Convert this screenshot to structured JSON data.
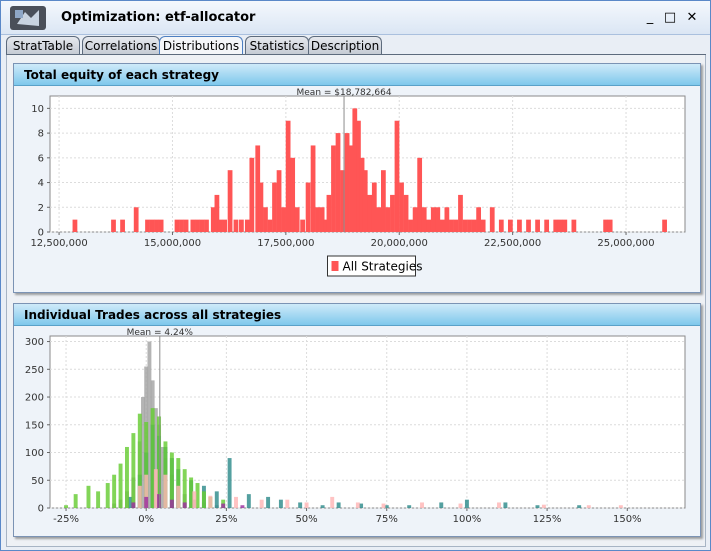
{
  "window": {
    "title": "Optimization: etf-allocator",
    "controls": {
      "minimize": "_",
      "maximize": "□",
      "close": "✕"
    }
  },
  "tabs": [
    {
      "label": "StratTable"
    },
    {
      "label": "Correlations"
    },
    {
      "label": "Distributions",
      "active": true
    },
    {
      "label": "Statistics"
    },
    {
      "label": "Description"
    }
  ],
  "colors": {
    "bar": "#ff5555",
    "panel_header": "#7ec8ec"
  },
  "panels": {
    "equity": {
      "title": "Total equity of each strategy"
    },
    "trades": {
      "title": "Individual Trades across all strategies"
    }
  },
  "chart_data": [
    {
      "type": "bar",
      "title": "",
      "xlabel": "",
      "ylabel": "",
      "annotation": "Mean = $18,782,664",
      "mean": 18782664,
      "xlim": [
        12300000,
        26300000
      ],
      "ylim": [
        0,
        11
      ],
      "x_ticks": [
        12500000,
        15000000,
        17500000,
        20000000,
        22500000,
        25000000
      ],
      "x_tick_labels": [
        "12,500,000",
        "15,000,000",
        "17,500,000",
        "20,000,000",
        "22,500,000",
        "25,000,000"
      ],
      "y_ticks": [
        0,
        2,
        4,
        6,
        8,
        10
      ],
      "y_tick_labels": [
        "0",
        "2",
        "4",
        "6",
        "8",
        "10"
      ],
      "legend": {
        "position": "bottom-center",
        "entries": [
          "All Strategies"
        ]
      },
      "grid": true,
      "series": [
        {
          "name": "All Strategies",
          "color": "#ff5555",
          "points": [
            [
              12850000,
              1
            ],
            [
              13700000,
              1
            ],
            [
              13900000,
              1
            ],
            [
              14200000,
              2
            ],
            [
              14450000,
              1
            ],
            [
              14550000,
              1
            ],
            [
              14650000,
              1
            ],
            [
              14750000,
              1
            ],
            [
              15100000,
              1
            ],
            [
              15200000,
              1
            ],
            [
              15300000,
              1
            ],
            [
              15450000,
              1
            ],
            [
              15550000,
              1
            ],
            [
              15650000,
              1
            ],
            [
              15750000,
              1
            ],
            [
              15900000,
              2
            ],
            [
              15980000,
              3
            ],
            [
              16050000,
              1
            ],
            [
              16150000,
              1
            ],
            [
              16270000,
              5
            ],
            [
              16400000,
              1
            ],
            [
              16520000,
              1
            ],
            [
              16650000,
              1
            ],
            [
              16750000,
              6
            ],
            [
              16880000,
              7
            ],
            [
              16950000,
              4
            ],
            [
              17050000,
              2
            ],
            [
              17150000,
              1
            ],
            [
              17250000,
              4
            ],
            [
              17350000,
              5
            ],
            [
              17450000,
              2
            ],
            [
              17550000,
              9
            ],
            [
              17650000,
              6
            ],
            [
              17750000,
              2
            ],
            [
              17870000,
              1
            ],
            [
              17990000,
              4
            ],
            [
              18100000,
              7
            ],
            [
              18200000,
              2
            ],
            [
              18300000,
              2
            ],
            [
              18380000,
              1
            ],
            [
              18450000,
              3
            ],
            [
              18550000,
              7
            ],
            [
              18650000,
              8
            ],
            [
              18750000,
              5
            ],
            [
              18850000,
              8
            ],
            [
              18950000,
              7
            ],
            [
              19020000,
              10
            ],
            [
              19100000,
              9
            ],
            [
              19180000,
              6
            ],
            [
              19250000,
              5
            ],
            [
              19350000,
              3
            ],
            [
              19450000,
              4
            ],
            [
              19550000,
              2
            ],
            [
              19650000,
              5
            ],
            [
              19750000,
              2
            ],
            [
              19850000,
              3
            ],
            [
              19950000,
              9
            ],
            [
              20050000,
              4
            ],
            [
              20150000,
              3
            ],
            [
              20250000,
              1
            ],
            [
              20350000,
              2
            ],
            [
              20450000,
              6
            ],
            [
              20550000,
              2
            ],
            [
              20650000,
              1
            ],
            [
              20750000,
              2
            ],
            [
              20850000,
              2
            ],
            [
              20950000,
              1
            ],
            [
              21050000,
              2
            ],
            [
              21150000,
              1
            ],
            [
              21250000,
              1
            ],
            [
              21350000,
              3
            ],
            [
              21450000,
              1
            ],
            [
              21550000,
              1
            ],
            [
              21650000,
              1
            ],
            [
              21750000,
              2
            ],
            [
              21850000,
              1
            ],
            [
              22050000,
              2
            ],
            [
              22250000,
              1
            ],
            [
              22450000,
              1
            ],
            [
              22650000,
              1
            ],
            [
              22850000,
              1
            ],
            [
              23050000,
              1
            ],
            [
              23250000,
              1
            ],
            [
              23450000,
              1
            ],
            [
              23550000,
              1
            ],
            [
              23650000,
              1
            ],
            [
              23850000,
              1
            ],
            [
              24550000,
              1
            ],
            [
              24650000,
              1
            ],
            [
              25850000,
              1
            ]
          ]
        }
      ]
    },
    {
      "type": "bar",
      "title": "",
      "xlabel": "",
      "ylabel": "",
      "annotation": "Mean = 4.24%",
      "mean": 4.24,
      "xlim": [
        -30,
        168
      ],
      "ylim": [
        0,
        310
      ],
      "x_ticks": [
        -25,
        0,
        25,
        50,
        75,
        100,
        125,
        150
      ],
      "x_tick_labels": [
        "-25%",
        "0%",
        "25%",
        "50%",
        "75%",
        "100%",
        "125%",
        "150%"
      ],
      "y_ticks": [
        0,
        50,
        100,
        150,
        200,
        250,
        300
      ],
      "y_tick_labels": [
        "0",
        "50",
        "100",
        "150",
        "200",
        "250",
        "300"
      ],
      "legend": {
        "position": "none",
        "entries": []
      },
      "grid": true,
      "series": [
        {
          "color": "#a3a3a3",
          "points": [
            [
              -10,
              8
            ],
            [
              -8,
              15
            ],
            [
              -6,
              30
            ],
            [
              -4,
              55
            ],
            [
              -2,
              120
            ],
            [
              -1,
              200
            ],
            [
              0,
              255
            ],
            [
              1,
              300
            ],
            [
              2,
              230
            ],
            [
              3,
              180
            ],
            [
              4,
              150
            ],
            [
              5,
              110
            ],
            [
              6,
              90
            ],
            [
              8,
              60
            ],
            [
              10,
              40
            ],
            [
              12,
              25
            ],
            [
              15,
              15
            ],
            [
              18,
              10
            ],
            [
              22,
              5
            ]
          ]
        },
        {
          "color": "#2e8b8b",
          "points": [
            [
              -5,
              20
            ],
            [
              -2,
              60
            ],
            [
              0,
              100
            ],
            [
              2,
              150
            ],
            [
              4,
              130
            ],
            [
              6,
              110
            ],
            [
              8,
              90
            ],
            [
              10,
              70
            ],
            [
              14,
              50
            ],
            [
              18,
              40
            ],
            [
              22,
              30
            ],
            [
              26,
              90
            ],
            [
              32,
              25
            ],
            [
              38,
              20
            ],
            [
              42,
              15
            ],
            [
              48,
              10
            ],
            [
              55,
              5
            ],
            [
              60,
              10
            ],
            [
              67,
              8
            ],
            [
              75,
              5
            ],
            [
              82,
              5
            ],
            [
              92,
              10
            ],
            [
              100,
              15
            ],
            [
              112,
              10
            ],
            [
              122,
              5
            ],
            [
              135,
              5
            ]
          ]
        },
        {
          "color": "#66cc33",
          "points": [
            [
              -25,
              5
            ],
            [
              -22,
              25
            ],
            [
              -18,
              40
            ],
            [
              -15,
              30
            ],
            [
              -12,
              45
            ],
            [
              -10,
              60
            ],
            [
              -8,
              80
            ],
            [
              -6,
              110
            ],
            [
              -4,
              135
            ],
            [
              -2,
              170
            ],
            [
              0,
              155
            ],
            [
              2,
              180
            ],
            [
              4,
              165
            ],
            [
              6,
              120
            ],
            [
              8,
              100
            ],
            [
              10,
              90
            ],
            [
              12,
              70
            ],
            [
              14,
              55
            ],
            [
              16,
              45
            ],
            [
              18,
              30
            ],
            [
              20,
              20
            ],
            [
              24,
              15
            ]
          ]
        },
        {
          "color": "#ffb6b6",
          "points": [
            [
              -2,
              40
            ],
            [
              0,
              60
            ],
            [
              3,
              70
            ],
            [
              6,
              60
            ],
            [
              10,
              40
            ],
            [
              15,
              30
            ],
            [
              20,
              22
            ],
            [
              28,
              20
            ],
            [
              36,
              15
            ],
            [
              44,
              15
            ],
            [
              50,
              10
            ],
            [
              58,
              20
            ],
            [
              66,
              10
            ],
            [
              74,
              8
            ],
            [
              86,
              10
            ],
            [
              98,
              8
            ],
            [
              110,
              10
            ],
            [
              124,
              6
            ],
            [
              138,
              5
            ],
            [
              148,
              5
            ]
          ]
        },
        {
          "color": "#9c2ea0",
          "points": [
            [
              -4,
              10
            ],
            [
              0,
              20
            ],
            [
              4,
              25
            ],
            [
              8,
              15
            ],
            [
              12,
              10
            ],
            [
              24,
              8
            ],
            [
              30,
              5
            ]
          ]
        }
      ]
    }
  ]
}
